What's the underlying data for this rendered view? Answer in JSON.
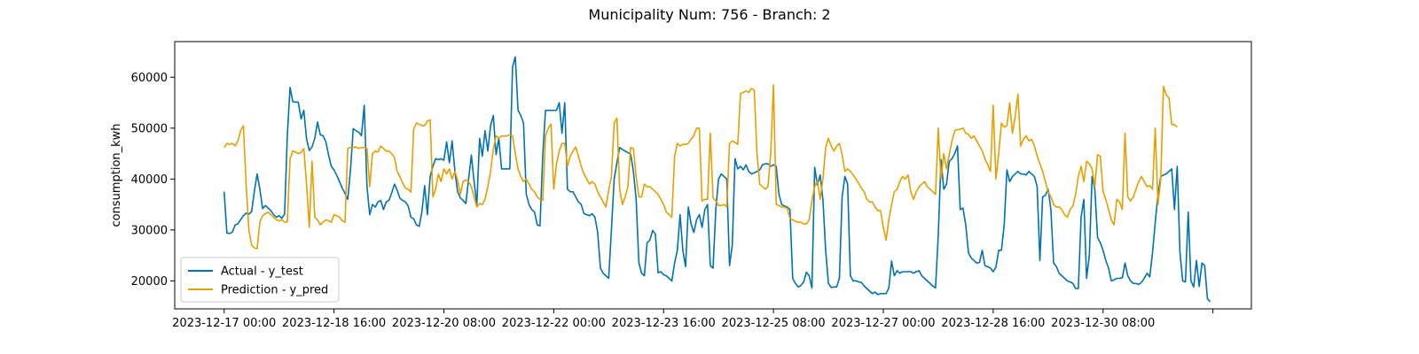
{
  "chart_data": {
    "type": "line",
    "title": "Municipality Num: 756 - Branch: 2",
    "xlabel": "",
    "ylabel": "consumption_kwh",
    "ylim": [
      14500,
      67000
    ],
    "yticks": [
      20000,
      30000,
      40000,
      50000,
      60000
    ],
    "ytick_labels": [
      "20000",
      "30000",
      "40000",
      "50000",
      "60000"
    ],
    "x_start": "2023-12-17 00:00",
    "x_step_hours": 1,
    "xticks_index": [
      0,
      40,
      80,
      120,
      160,
      200,
      240,
      280,
      320,
      360
    ],
    "xtick_labels": [
      "2023-12-17 00:00",
      "2023-12-18 16:00",
      "2023-12-20 08:00",
      "2023-12-22 00:00",
      "2023-12-23 16:00",
      "2023-12-25 08:00",
      "2023-12-27 00:00",
      "2023-12-28 16:00",
      "2023-12-30 08:00",
      ""
    ],
    "xlim_index": [
      -18,
      374
    ],
    "legend": {
      "placement": "lower-left"
    },
    "grid": false,
    "series": [
      {
        "name": "Actual - y_test",
        "color": "#0072b2",
        "values": [
          37500,
          29400,
          29300,
          29600,
          31000,
          31200,
          32000,
          32800,
          33300,
          33100,
          33600,
          37600,
          41000,
          38000,
          34200,
          34800,
          34300,
          33800,
          33000,
          32500,
          32800,
          32300,
          33100,
          48600,
          58000,
          55200,
          55100,
          55100,
          51800,
          53500,
          47900,
          45600,
          46300,
          48000,
          51200,
          48700,
          48500,
          47400,
          44800,
          42500,
          41800,
          40700,
          39500,
          38200,
          37200,
          36000,
          41800,
          49900,
          49500,
          49200,
          48500,
          54500,
          38500,
          33000,
          35000,
          34500,
          35500,
          35800,
          34000,
          35500,
          35800,
          37300,
          39000,
          37800,
          36200,
          35800,
          35500,
          34700,
          32500,
          32200,
          31000,
          30700,
          33500,
          38700,
          33000,
          40500,
          42500,
          44000,
          43800,
          44000,
          43700,
          47300,
          43200,
          47500,
          41600,
          37500,
          36300,
          35800,
          35200,
          40000,
          44700,
          39500,
          35000,
          48000,
          44500,
          49500,
          45500,
          50500,
          52500,
          44800,
          48000,
          42000,
          42000,
          42000,
          42000,
          62000,
          64000,
          53500,
          52500,
          51000,
          37000,
          35000,
          34000,
          33500,
          31000,
          30800,
          44700,
          53500,
          53500,
          53500,
          53500,
          53500,
          55000,
          49000,
          55000,
          38000,
          37500,
          37500,
          36500,
          35500,
          35000,
          33200,
          33000,
          32800,
          33200,
          32500,
          29500,
          22500,
          21500,
          21000,
          20500,
          30000,
          40000,
          43200,
          46200,
          45800,
          45500,
          45200,
          44900,
          41500,
          36000,
          23500,
          21500,
          21000,
          27500,
          28000,
          29900,
          29200,
          21600,
          21800,
          21200,
          21000,
          20500,
          20000,
          23500,
          26000,
          33000,
          26000,
          22800,
          34500,
          31200,
          29500,
          32000,
          33000,
          30500,
          34000,
          35000,
          23000,
          22500,
          34000,
          40000,
          41000,
          40500,
          40000,
          23000,
          27000,
          44000,
          42000,
          42500,
          41800,
          42800,
          41500,
          41000,
          41200,
          41500,
          41800,
          42800,
          43000,
          43000,
          42500,
          42800,
          42500,
          37000,
          35000,
          34700,
          34500,
          34000,
          20500,
          19500,
          18800,
          19100,
          19800,
          21700,
          21000,
          18600,
          42300,
          38800,
          40800,
          36000,
          26000,
          19500,
          18700,
          18800,
          18800,
          20500,
          36500,
          40500,
          39000,
          21000,
          20000,
          20000,
          19800,
          19700,
          19000,
          18500,
          18000,
          17500,
          17800,
          17300,
          17500,
          17500,
          17500,
          18600,
          23900,
          21000,
          22000,
          21500,
          21800,
          21800,
          21800,
          21800,
          21500,
          21800,
          22000,
          21000,
          20500,
          20000,
          19500,
          19000,
          18600,
          29000,
          43800,
          38000,
          39000,
          43500,
          44000,
          45000,
          46500,
          34000,
          34300,
          31000,
          25500,
          24500,
          24000,
          23500,
          23600,
          26000,
          23000,
          22800,
          22500,
          21800,
          22700,
          26000,
          26000,
          31000,
          41800,
          39500,
          40500,
          41000,
          41500,
          41000,
          41000,
          40800,
          41500,
          41000,
          40500,
          38500,
          24000,
          36500,
          36800,
          38000,
          34000,
          23500,
          22800,
          21500,
          21000,
          20500,
          20000,
          19800,
          19500,
          18500,
          18500,
          32500,
          36000,
          20500,
          25000,
          40500,
          38000,
          28500,
          27500,
          26000,
          24000,
          22500,
          20000,
          20200,
          20500,
          20500,
          20600,
          23500,
          21000,
          20000,
          19500,
          19500,
          19300,
          19700,
          20500,
          21500,
          20800,
          25500,
          31500,
          37000,
          40500,
          40800,
          41000,
          41500,
          42000,
          34000,
          42500,
          25500,
          20000,
          19800,
          33500,
          20000,
          18800,
          24000,
          18900,
          23500,
          23000,
          16500,
          15900
        ]
      },
      {
        "name": "Prediction - y_pred",
        "color": "#e69f00",
        "values": [
          46200,
          47000,
          46800,
          47000,
          46500,
          47500,
          49500,
          50500,
          39000,
          30000,
          27000,
          26500,
          26300,
          31500,
          32800,
          33200,
          33500,
          33000,
          32500,
          32000,
          31800,
          32000,
          31500,
          31600,
          44000,
          45500,
          45300,
          45000,
          45200,
          46000,
          39000,
          30500,
          43500,
          32500,
          32000,
          31000,
          31500,
          32000,
          31800,
          31500,
          33000,
          32800,
          32500,
          31800,
          31500,
          46000,
          46200,
          46200,
          46300,
          46000,
          46200,
          46200,
          46000,
          38500,
          45000,
          45500,
          45300,
          46500,
          46000,
          45500,
          45500,
          45000,
          44200,
          41500,
          40500,
          39200,
          38200,
          38000,
          37400,
          49800,
          51000,
          50800,
          50500,
          50500,
          51400,
          51600,
          36500,
          38000,
          41000,
          39500,
          42000,
          41000,
          42000,
          40000,
          41500,
          39800,
          37000,
          39500,
          39800,
          39500,
          38500,
          36500,
          34500,
          35200,
          35000,
          36000,
          38500,
          41500,
          45800,
          48500,
          48000,
          48500,
          48400,
          48500,
          48700,
          48500,
          45000,
          42000,
          40500,
          39500,
          40000,
          39000,
          38000,
          37500,
          36500,
          36000,
          35800,
          48500,
          50000,
          50800,
          38000,
          43000,
          45500,
          47000,
          47000,
          42500,
          44500,
          45500,
          46300,
          44500,
          42500,
          41000,
          40000,
          39000,
          39500,
          39000,
          37500,
          36500,
          35500,
          34500,
          37800,
          40500,
          51000,
          52000,
          38000,
          35000,
          36500,
          38500,
          46200,
          46000,
          40500,
          36500,
          36500,
          39000,
          38500,
          38500,
          38000,
          37500,
          37000,
          36000,
          35000,
          33500,
          33000,
          32500,
          44500,
          47000,
          46500,
          46800,
          46800,
          47000,
          47800,
          48500,
          50000,
          50000,
          35700,
          36000,
          36000,
          49000,
          36300,
          35700,
          34800,
          34800,
          35000,
          34500,
          47000,
          47500,
          47200,
          46800,
          56800,
          57000,
          57300,
          57000,
          57800,
          57500,
          45000,
          39000,
          38500,
          38000,
          38500,
          45000,
          58500,
          35000,
          34800,
          34500,
          34500,
          34300,
          32200,
          32000,
          31700,
          31500,
          31500,
          31200,
          31200,
          32000,
          35800,
          38500,
          39800,
          36000,
          40000,
          46200,
          48000,
          46500,
          45500,
          46500,
          47000,
          44800,
          41500,
          42000,
          41500,
          40800,
          40000,
          39200,
          38200,
          37500,
          36000,
          35500,
          35500,
          34500,
          33800,
          33800,
          30500,
          28000,
          32000,
          35000,
          37500,
          38000,
          39500,
          40500,
          40000,
          40800,
          37500,
          36000,
          37500,
          38500,
          39000,
          39500,
          38500,
          38000,
          37500,
          37000,
          50000,
          40000,
          45000,
          42000,
          44800,
          47500,
          49500,
          49700,
          49800,
          50000,
          49000,
          48800,
          48000,
          48500,
          47500,
          46500,
          45500,
          44000,
          42800,
          41500,
          54500,
          40000,
          45000,
          51000,
          50200,
          50500,
          55000,
          49000,
          52200,
          56700,
          46500,
          47800,
          48500,
          47500,
          47800,
          46500,
          44500,
          43000,
          41500,
          39500,
          37500,
          36500,
          35000,
          34500,
          34500,
          34000,
          33000,
          32500,
          34000,
          34700,
          37000,
          40500,
          42500,
          39500,
          43500,
          43000,
          42000,
          38500,
          44800,
          44500,
          37500,
          36000,
          34000,
          32000,
          31000,
          36000,
          35500,
          34000,
          49000,
          36500,
          35700,
          36500,
          38000,
          39500,
          40500,
          39500,
          38500,
          38700,
          38000,
          50000,
          35000,
          40000,
          58200,
          56500,
          56000,
          50700,
          50700,
          50200
        ]
      }
    ]
  }
}
